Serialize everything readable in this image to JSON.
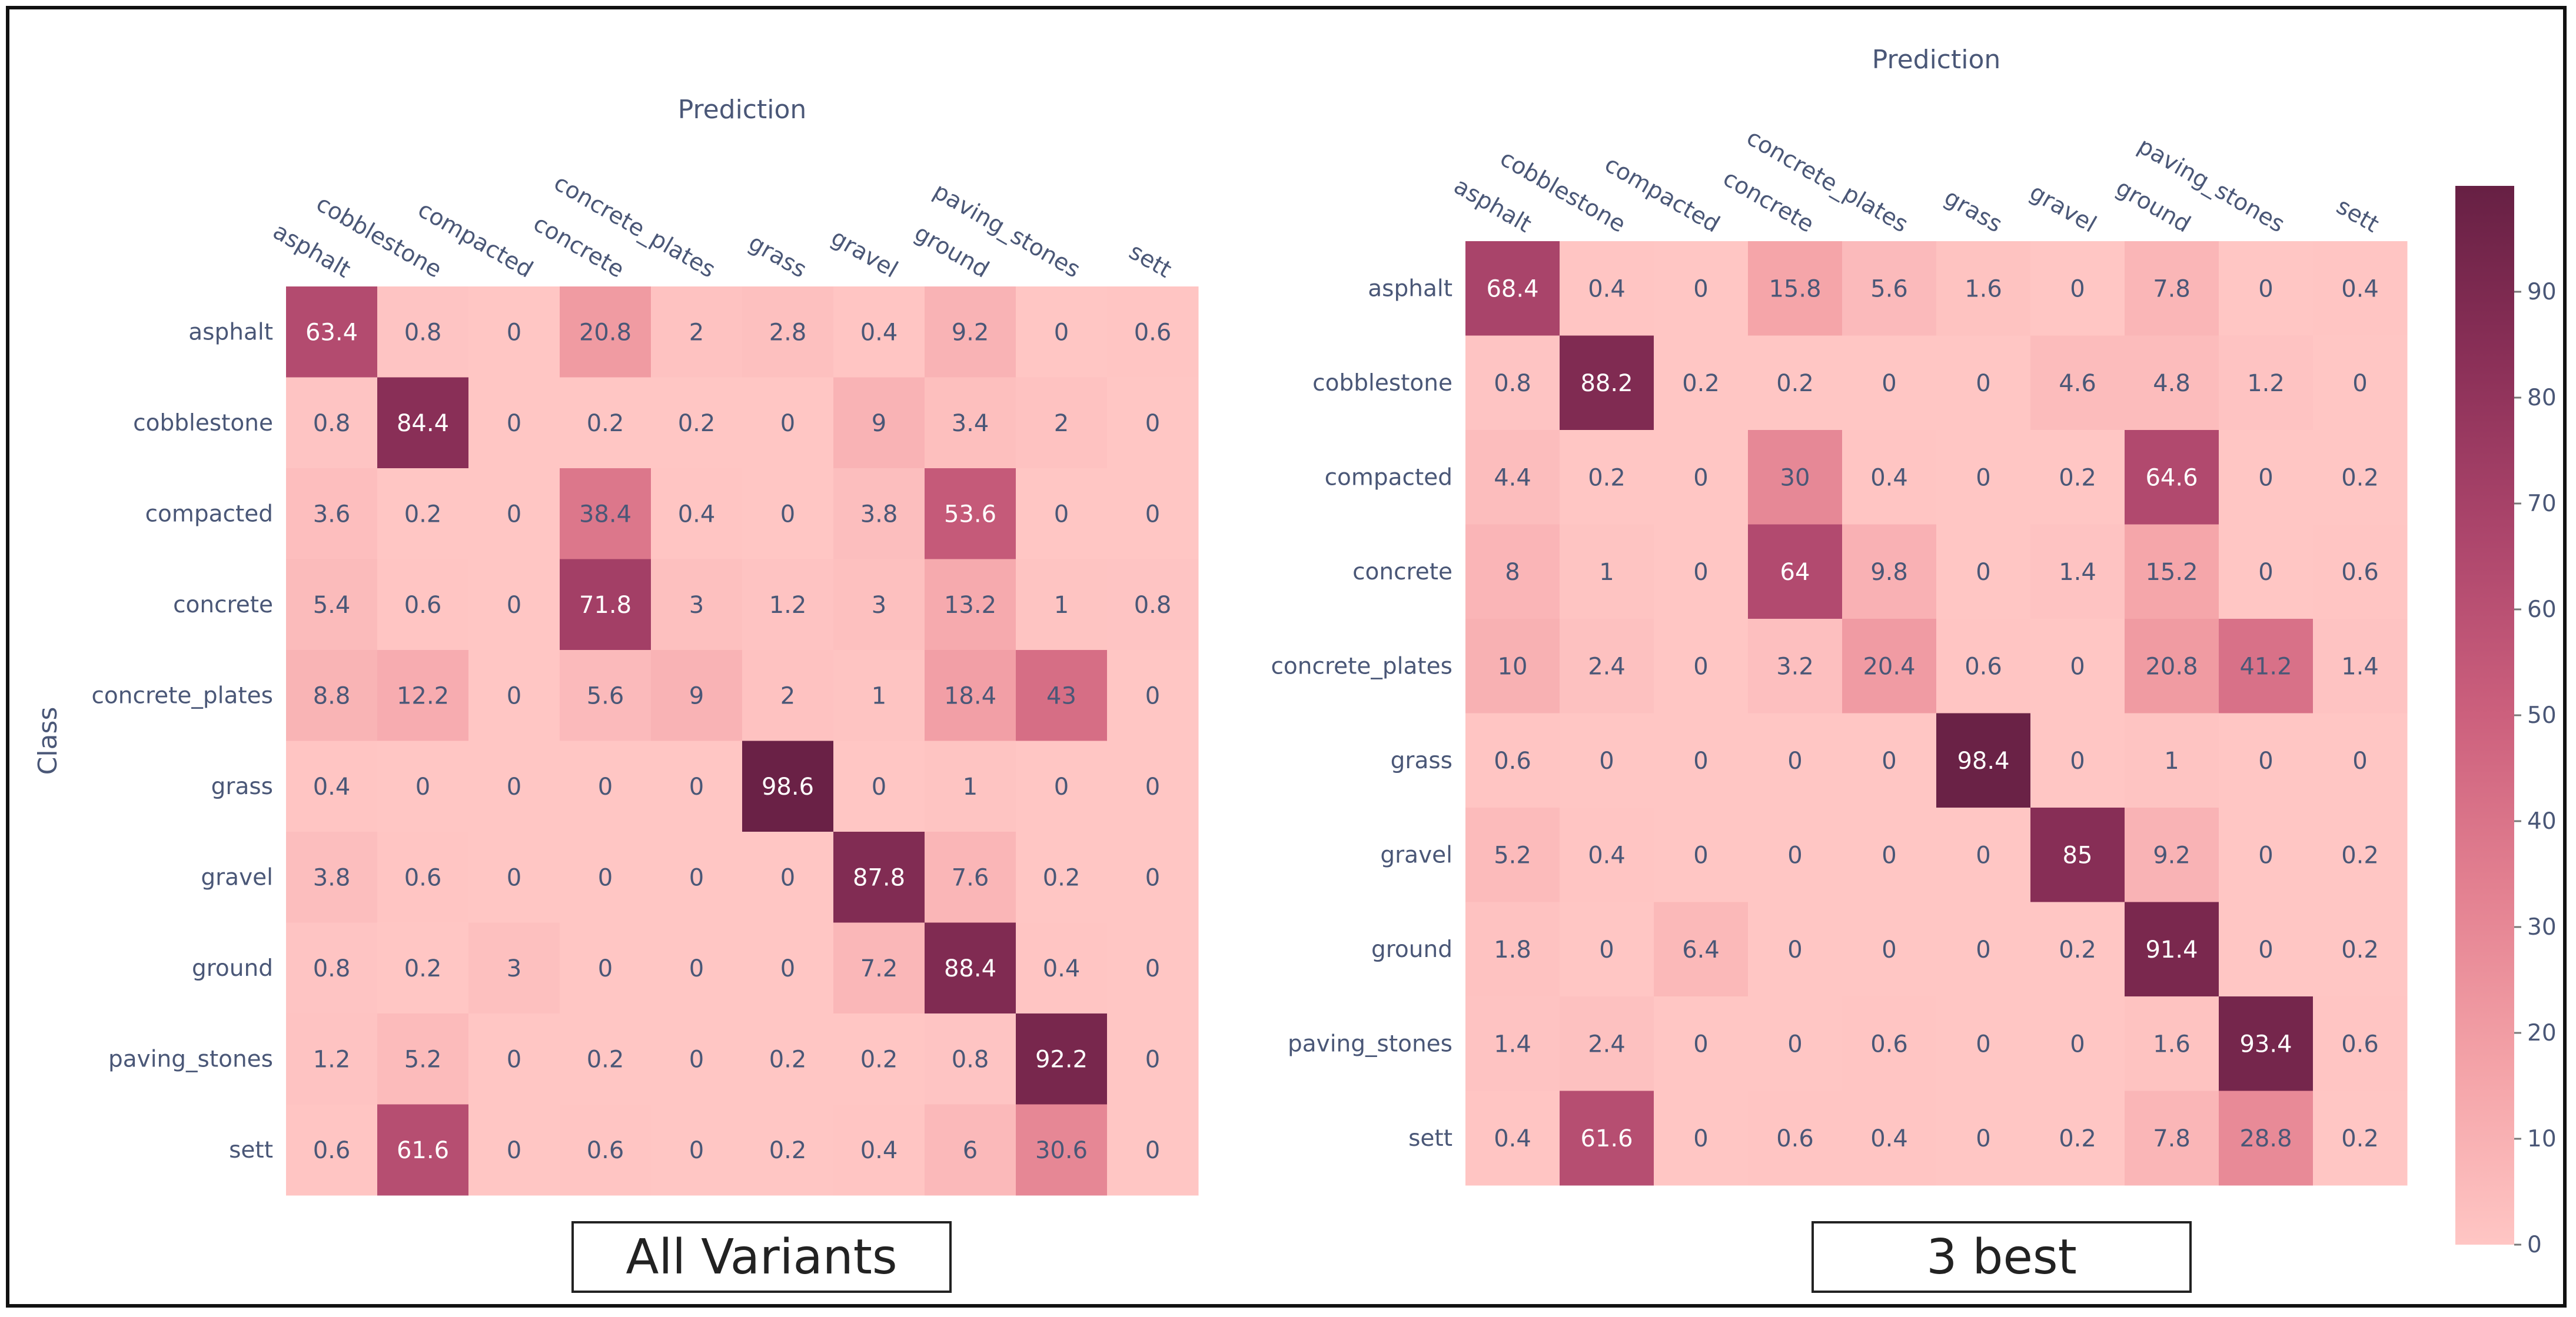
{
  "chart_data": [
    {
      "type": "heatmap",
      "title": "All Variants",
      "xlabel": "Prediction",
      "ylabel": "Class",
      "x_categories": [
        "asphalt",
        "cobblestone",
        "compacted",
        "concrete",
        "concrete_plates",
        "grass",
        "gravel",
        "ground",
        "paving_stones",
        "sett"
      ],
      "y_categories": [
        "asphalt",
        "cobblestone",
        "compacted",
        "concrete",
        "concrete_plates",
        "grass",
        "gravel",
        "ground",
        "paving_stones",
        "sett"
      ],
      "values": [
        [
          "63.4",
          "0.8",
          "0",
          "20.8",
          "2",
          "2.8",
          "0.4",
          "9.2",
          "0",
          "0.6"
        ],
        [
          "0.8",
          "84.4",
          "0",
          "0.2",
          "0.2",
          "0",
          "9",
          "3.4",
          "2",
          "0"
        ],
        [
          "3.6",
          "0.2",
          "0",
          "38.4",
          "0.4",
          "0",
          "3.8",
          "53.6",
          "0",
          "0"
        ],
        [
          "5.4",
          "0.6",
          "0",
          "71.8",
          "3",
          "1.2",
          "3",
          "13.2",
          "1",
          "0.8"
        ],
        [
          "8.8",
          "12.2",
          "0",
          "5.6",
          "9",
          "2",
          "1",
          "18.4",
          "43",
          "0"
        ],
        [
          "0.4",
          "0",
          "0",
          "0",
          "0",
          "98.6",
          "0",
          "1",
          "0",
          "0"
        ],
        [
          "3.8",
          "0.6",
          "0",
          "0",
          "0",
          "0",
          "87.8",
          "7.6",
          "0.2",
          "0"
        ],
        [
          "0.8",
          "0.2",
          "3",
          "0",
          "0",
          "0",
          "7.2",
          "88.4",
          "0.4",
          "0"
        ],
        [
          "1.2",
          "5.2",
          "0",
          "0.2",
          "0",
          "0.2",
          "0.2",
          "0.8",
          "92.2",
          "0"
        ],
        [
          "0.6",
          "61.6",
          "0",
          "0.6",
          "0",
          "0.2",
          "0.4",
          "6",
          "30.6",
          "0"
        ]
      ]
    },
    {
      "type": "heatmap",
      "title": "3 best",
      "xlabel": "Prediction",
      "ylabel": "",
      "x_categories": [
        "asphalt",
        "cobblestone",
        "compacted",
        "concrete",
        "concrete_plates",
        "grass",
        "gravel",
        "ground",
        "paving_stones",
        "sett"
      ],
      "y_categories": [
        "asphalt",
        "cobblestone",
        "compacted",
        "concrete",
        "concrete_plates",
        "grass",
        "gravel",
        "ground",
        "paving_stones",
        "sett"
      ],
      "values": [
        [
          "68.4",
          "0.4",
          "0",
          "15.8",
          "5.6",
          "1.6",
          "0",
          "7.8",
          "0",
          "0.4"
        ],
        [
          "0.8",
          "88.2",
          "0.2",
          "0.2",
          "0",
          "0",
          "4.6",
          "4.8",
          "1.2",
          "0"
        ],
        [
          "4.4",
          "0.2",
          "0",
          "30",
          "0.4",
          "0",
          "0.2",
          "64.6",
          "0",
          "0.2"
        ],
        [
          "8",
          "1",
          "0",
          "64",
          "9.8",
          "0",
          "1.4",
          "15.2",
          "0",
          "0.6"
        ],
        [
          "10",
          "2.4",
          "0",
          "3.2",
          "20.4",
          "0.6",
          "0",
          "20.8",
          "41.2",
          "1.4"
        ],
        [
          "0.6",
          "0",
          "0",
          "0",
          "0",
          "98.4",
          "0",
          "1",
          "0",
          "0"
        ],
        [
          "5.2",
          "0.4",
          "0",
          "0",
          "0",
          "0",
          "85",
          "9.2",
          "0",
          "0.2"
        ],
        [
          "1.8",
          "0",
          "6.4",
          "0",
          "0",
          "0",
          "0.2",
          "91.4",
          "0",
          "0.2"
        ],
        [
          "1.4",
          "2.4",
          "0",
          "0",
          "0.6",
          "0",
          "0",
          "1.6",
          "93.4",
          "0.6"
        ],
        [
          "0.4",
          "61.6",
          "0",
          "0.6",
          "0.4",
          "0",
          "0.2",
          "7.8",
          "28.8",
          "0.2"
        ]
      ]
    }
  ],
  "colorscale": {
    "range": [
      0,
      100
    ],
    "ticks": [
      "0",
      "10",
      "20",
      "30",
      "40",
      "50",
      "60",
      "70",
      "80",
      "90"
    ],
    "colors": [
      "#ffc6c4",
      "#f4a3a8",
      "#e38191",
      "#cc607d",
      "#ad466c",
      "#8b3058",
      "#672044"
    ]
  },
  "captions": {
    "left": "All Variants",
    "right": "3 best"
  }
}
